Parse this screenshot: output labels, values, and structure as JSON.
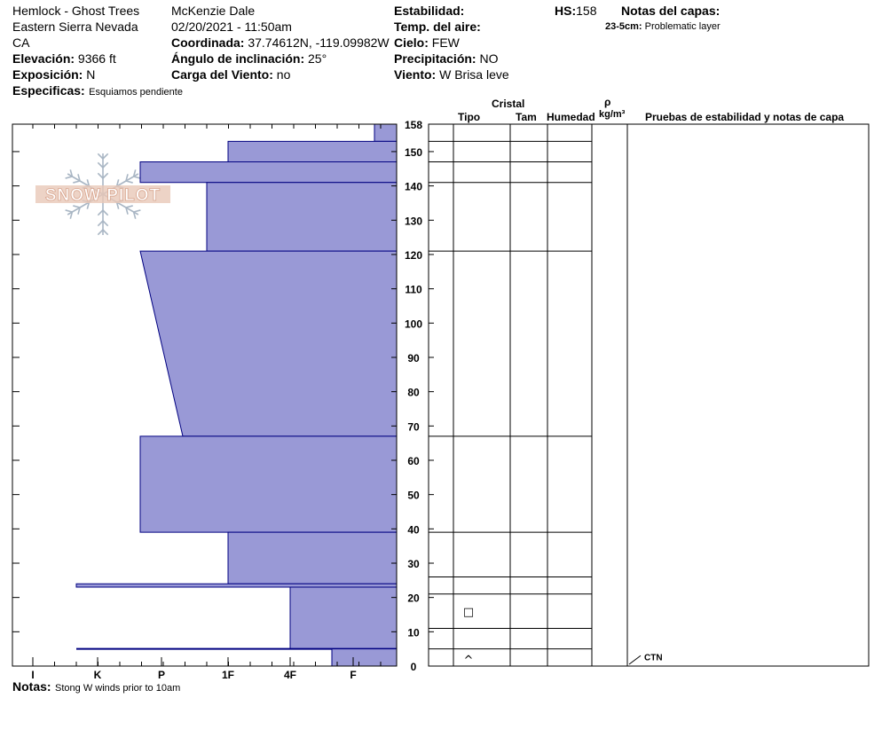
{
  "header": {
    "location": "Hemlock - Ghost Trees",
    "range": "Eastern Sierra Nevada",
    "state": "CA",
    "elevation_label": "Elevación:",
    "elevation_value": "9366 ft",
    "aspect_label": "Exposición:",
    "aspect_value": "N",
    "specifics_label": "Especificas:",
    "specifics_value": "Esquiamos pendiente",
    "observer": "McKenzie Dale",
    "datetime": "02/20/2021 - 11:50am",
    "coord_label": "Coordinada:",
    "coord_value": "37.74612N, -119.09982W",
    "slope_label": "Ángulo de inclinación:",
    "slope_value": "25°",
    "windload_label": "Carga del Viento:",
    "windload_value": "no",
    "stability_label": "Estabilidad:",
    "airtemp_label": "Temp. del aire:",
    "sky_label": "Cielo:",
    "sky_value": "FEW",
    "precip_label": "Precipitación:",
    "precip_value": "NO",
    "wind_label": "Viento:",
    "wind_value": "W Brisa leve",
    "hs_label": "HS:",
    "hs_value": "158",
    "layer_notes_label": "Notas del capas:",
    "layer_note_depth": "23-5cm:",
    "layer_note_text": "Problematic layer"
  },
  "logo": {
    "text": "SNOW PILOT"
  },
  "footer": {
    "notes_label": "Notas:",
    "notes_value": "Stong W winds prior to 10am"
  },
  "columns": {
    "crystal": "Cristal",
    "type": "Tipo",
    "size": "Tam",
    "moisture": "Humedad",
    "rho": "ρ",
    "density": "kg/m³",
    "tests": "Pruebas de estabilidad y notas de capa"
  },
  "chart_data": {
    "type": "bar",
    "title": "",
    "orientation": "horizontal",
    "x_axis": {
      "categories": [
        "I",
        "K",
        "P",
        "1F",
        "4F",
        "F"
      ],
      "reversed": true,
      "description": "hand hardness"
    },
    "y_axis": {
      "unit": "cm",
      "min": 0,
      "max": 158,
      "ticks": [
        0,
        10,
        20,
        30,
        40,
        50,
        60,
        70,
        80,
        90,
        100,
        110,
        120,
        130,
        140,
        150,
        158
      ]
    },
    "layers": [
      {
        "bottom": 153,
        "top": 158,
        "hardness_top": "F-",
        "hardness_bottom": "F-"
      },
      {
        "bottom": 147,
        "top": 153,
        "hardness_top": "1F",
        "hardness_bottom": "1F"
      },
      {
        "bottom": 141,
        "top": 147,
        "hardness_top": "P+",
        "hardness_bottom": "P+"
      },
      {
        "bottom": 121,
        "top": 141,
        "hardness_top": "1F+",
        "hardness_bottom": "1F+"
      },
      {
        "bottom": 67,
        "top": 121,
        "hardness_top": "P+",
        "hardness_bottom": "P-"
      },
      {
        "bottom": 39,
        "top": 67,
        "hardness_top": "P+",
        "hardness_bottom": "P+"
      },
      {
        "bottom": 24,
        "top": 39,
        "hardness_top": "1F",
        "hardness_bottom": "1F"
      },
      {
        "bottom": 23,
        "top": 24,
        "hardness_top": "K+",
        "hardness_bottom": "K+"
      },
      {
        "bottom": 5,
        "top": 23,
        "hardness_top": "4F",
        "hardness_bottom": "4F"
      },
      {
        "bottom": 5,
        "top": 5,
        "hardness_top": "K+",
        "hardness_bottom": "K+",
        "line_only": true
      },
      {
        "bottom": 0,
        "top": 5,
        "hardness_top": "F+",
        "hardness_bottom": "F+"
      }
    ],
    "grid_boundaries": [
      158,
      153,
      147,
      141,
      121,
      67,
      39,
      26,
      21,
      11,
      5,
      0
    ],
    "crystal_symbols": [
      {
        "depth": 16,
        "symbol": "□"
      },
      {
        "depth": 2,
        "symbol": "^"
      }
    ],
    "test_notes": [
      {
        "depth": 2,
        "text": "CTN"
      }
    ],
    "colors": {
      "fill": "#9999d6",
      "stroke": "#000080"
    }
  }
}
